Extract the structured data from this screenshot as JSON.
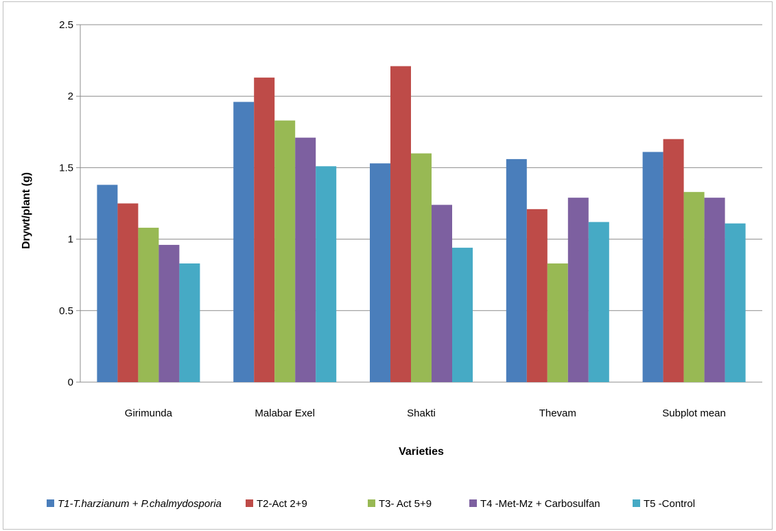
{
  "chart_data": {
    "type": "bar",
    "title": "",
    "xlabel": "Varieties",
    "ylabel": "Drywt/plant (g)",
    "ylim": [
      0,
      2.5
    ],
    "yticks": [
      "0",
      "0.5",
      "1",
      "1.5",
      "2",
      "2.5"
    ],
    "ytick_values": [
      0,
      0.5,
      1,
      1.5,
      2,
      2.5
    ],
    "grid": "horizontal",
    "legend": "bottom",
    "categories": [
      "Girimunda",
      "Malabar Exel",
      "Shakti",
      "Thevam",
      "Subplot mean"
    ],
    "series": [
      {
        "name": "T1-T.harzianum + P.chalmydosporia",
        "italic": true,
        "color": "#4a7ebb",
        "values": [
          1.38,
          1.96,
          1.53,
          1.56,
          1.61
        ]
      },
      {
        "name": "T2-Act 2+9",
        "italic": false,
        "color": "#be4b48",
        "values": [
          1.25,
          2.13,
          2.21,
          1.21,
          1.7
        ]
      },
      {
        "name": "T3- Act 5+9",
        "italic": false,
        "color": "#98b954",
        "values": [
          1.08,
          1.83,
          1.6,
          0.83,
          1.33
        ]
      },
      {
        "name": "T4 -Met-Mz + Carbosulfan",
        "italic": false,
        "color": "#7d60a0",
        "values": [
          0.96,
          1.71,
          1.24,
          1.29,
          1.29
        ]
      },
      {
        "name": "T5 -Control",
        "italic": false,
        "color": "#46aac5",
        "values": [
          0.83,
          1.51,
          0.94,
          1.12,
          1.11
        ]
      }
    ]
  }
}
